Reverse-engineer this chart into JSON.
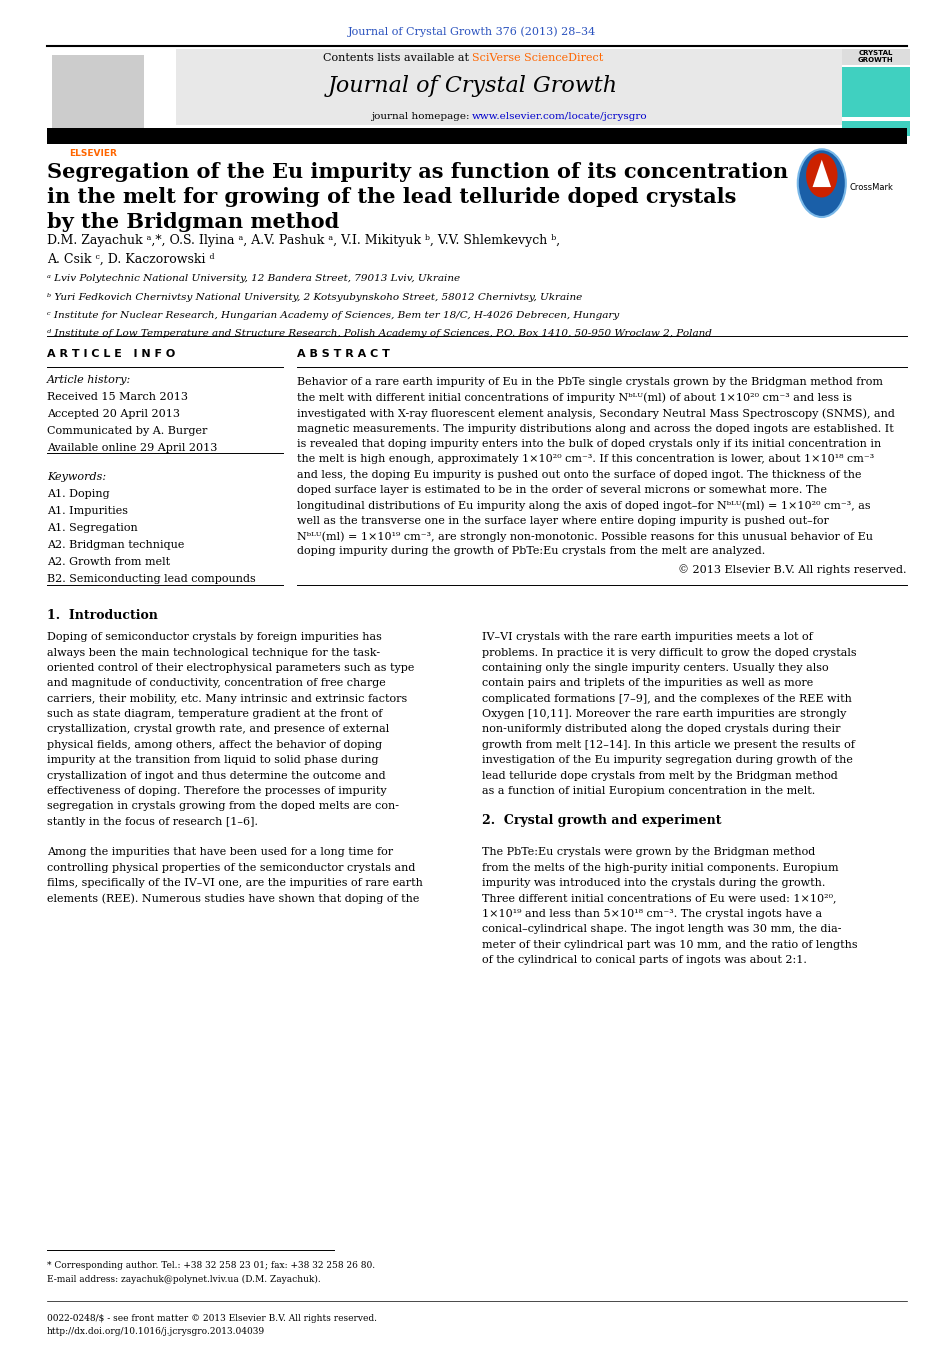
{
  "page_width": 9.92,
  "page_height": 13.23,
  "background_color": "#ffffff",
  "journal_ref_text": "Journal of Crystal Growth 376 (2013) 28–34",
  "journal_ref_color": "#2a52be",
  "journal_ref_fontsize": 8,
  "header_bg_color": "#e8e8e8",
  "header_title": "Journal of Crystal Growth",
  "header_homepage_url": "www.elsevier.com/locate/jcrysgro",
  "header_url_color": "#0000cc",
  "paper_title_line1": "Segregation of the Eu impurity as function of its concentration",
  "paper_title_line2": "in the melt for growing of the lead telluride doped crystals",
  "paper_title_line3": "by the Bridgman method",
  "paper_title_fontsize": 15,
  "authors": "D.M. Zayachuk ᵃ,*, O.S. Ilyina ᵃ, A.V. Pashuk ᵃ, V.I. Mikityuk ᵇ, V.V. Shlemkevych ᵇ,",
  "authors2": "A. Csik ᶜ, D. Kaczorowski ᵈ",
  "authors_fontsize": 9,
  "affil_a": "ᵃ Lviv Polytechnic National University, 12 Bandera Street, 79013 Lviv, Ukraine",
  "affil_b": "ᵇ Yuri Fedkovich Chernivtsy National University, 2 Kotsyubynskoho Street, 58012 Chernivtsy, Ukraine",
  "affil_c": "ᶜ Institute for Nuclear Research, Hungarian Academy of Sciences, Bem ter 18/C, H-4026 Debrecen, Hungary",
  "affil_d": "ᵈ Institute of Low Temperature and Structure Research, Polish Academy of Sciences, P.O. Box 1410, 50-950 Wroclaw 2, Poland",
  "affil_fontsize": 7.5,
  "article_info_title": "A R T I C L E   I N F O",
  "article_history_title": "Article history:",
  "received": "Received 15 March 2013",
  "accepted": "Accepted 20 April 2013",
  "communicated": "Communicated by A. Burger",
  "available": "Available online 29 April 2013",
  "keywords_title": "Keywords:",
  "keywords": [
    "A1. Doping",
    "A1. Impurities",
    "A1. Segregation",
    "A2. Bridgman technique",
    "A2. Growth from melt",
    "B2. Semiconducting lead compounds"
  ],
  "section_fontsize": 8,
  "abstract_title": "A B S T R A C T",
  "abstract_fontsize": 8,
  "abstract_copyright": "© 2013 Elsevier B.V. All rights reserved.",
  "intro_title": "1.  Introduction",
  "intro_fontsize": 9,
  "body_text_fontsize": 8,
  "crystal_growth_title": "2.  Crystal growth and experiment",
  "footer_note": "* Corresponding author. Tel.: +38 32 258 23 01; fax: +38 32 258 26 80.",
  "footer_email": "E-mail address: zayachuk@polynet.lviv.ua (D.M. Zayachuk).",
  "footer_issn": "0022-0248/$ - see front matter © 2013 Elsevier B.V. All rights reserved.",
  "footer_doi": "http://dx.doi.org/10.1016/j.jcrysgro.2013.04039",
  "footer_fontsize": 6.5
}
